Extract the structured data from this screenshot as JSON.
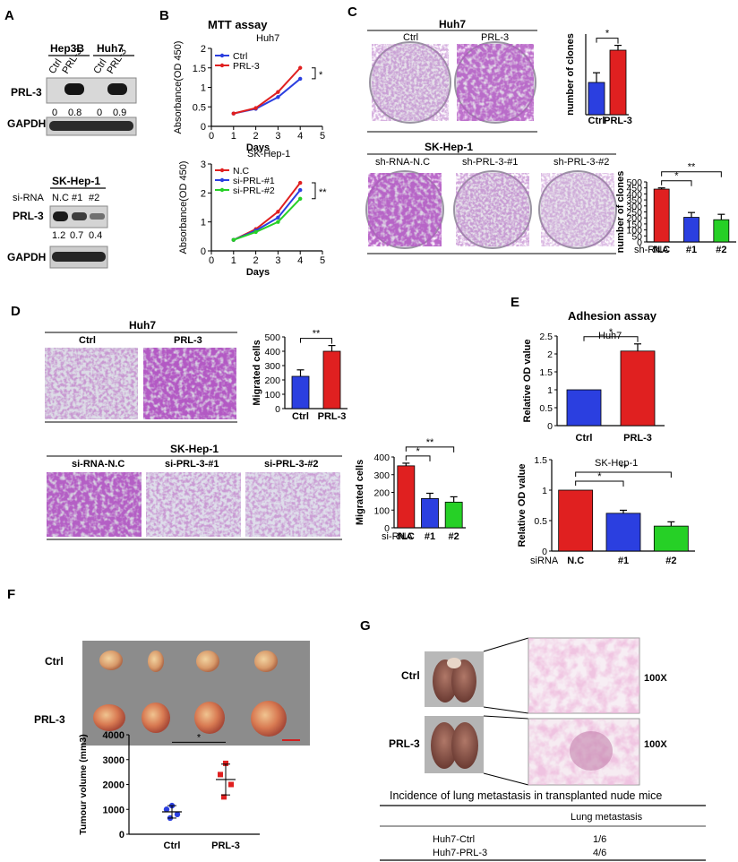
{
  "panels": {
    "A": "A",
    "B": "B",
    "C": "C",
    "D": "D",
    "E": "E",
    "F": "F",
    "G": "G"
  },
  "panelA": {
    "cell1": "Hep3B",
    "cell2": "Huh7",
    "lanes": [
      "Ctrl",
      "PRL-3",
      "Ctrl",
      "PRL-3"
    ],
    "row1": "PRL-3",
    "row2": "GAPDH",
    "quant": [
      "0",
      "0.8",
      "0",
      "0.9"
    ],
    "sk_title": "SK-Hep-1",
    "si_label": "si-RNA",
    "sk_lanes": [
      "N.C",
      "#1",
      "#2"
    ],
    "sk_row1": "PRL-3",
    "sk_row2": "GAPDH",
    "sk_quant": [
      "1.2",
      "0.7",
      "0.4"
    ]
  },
  "panelB": {
    "title": "MTT assay"
  },
  "panelC": {
    "huh7_title": "Huh7",
    "huh7_lanes": [
      "Ctrl",
      "PRL-3"
    ],
    "sk_title": "SK-Hep-1",
    "sk_lanes": [
      "sh-RNA-N.C",
      "sh-PRL-3-#1",
      "sh-PRL-3-#2"
    ]
  },
  "panelD": {
    "huh7_title": "Huh7",
    "huh7_lanes": [
      "Ctrl",
      "PRL-3"
    ],
    "sk_title": "SK-Hep-1",
    "sk_lanes": [
      "si-RNA-N.C",
      "si-PRL-3-#1",
      "si-PRL-3-#2"
    ]
  },
  "panelE": {
    "title": "Adhesion assay"
  },
  "panelF": {
    "rows": [
      "Ctrl",
      "PRL-3"
    ]
  },
  "panelG": {
    "rows": [
      "Ctrl",
      "PRL-3"
    ],
    "mag": [
      "100X",
      "100X"
    ],
    "table_title": "Incidence of lung metastasis in transplanted nude mice",
    "table_header": "Lung metastasis",
    "table_rows": [
      {
        "group": "Huh7-Ctrl",
        "value": "1/6"
      },
      {
        "group": "Huh7-PRL-3",
        "value": "4/6"
      }
    ]
  },
  "colors": {
    "blue": "#2b3fe0",
    "red": "#e02020",
    "green": "#26d026",
    "purple": "#7a2f8c",
    "stain": "#b04aa8"
  },
  "chart_data": [
    {
      "id": "B1",
      "type": "line",
      "subtitle": "Huh7",
      "xlabel": "Days",
      "ylabel": "Absorbance(OD 450)",
      "xlim": [
        0,
        5
      ],
      "ylim": [
        0,
        2
      ],
      "xticks": [
        0,
        1,
        2,
        3,
        4,
        5
      ],
      "yticks": [
        0,
        0.5,
        1,
        1.5,
        2
      ],
      "annotation": "*",
      "series": [
        {
          "name": "Ctrl",
          "color": "#2b3fe0",
          "x": [
            1,
            2,
            3,
            4
          ],
          "y": [
            0.33,
            0.45,
            0.75,
            1.22
          ]
        },
        {
          "name": "PRL-3",
          "color": "#e02020",
          "x": [
            1,
            2,
            3,
            4
          ],
          "y": [
            0.33,
            0.47,
            0.88,
            1.5
          ]
        }
      ]
    },
    {
      "id": "B2",
      "type": "line",
      "subtitle": "SK-Hep-1",
      "xlabel": "Days",
      "ylabel": "Absorbance(OD 450)",
      "xlim": [
        0,
        5
      ],
      "ylim": [
        0,
        3
      ],
      "xticks": [
        0,
        1,
        2,
        3,
        4,
        5
      ],
      "yticks": [
        0,
        1,
        2,
        3
      ],
      "annotation": "**",
      "series": [
        {
          "name": "N.C",
          "color": "#e02020",
          "x": [
            1,
            2,
            3,
            4
          ],
          "y": [
            0.38,
            0.75,
            1.35,
            2.35
          ]
        },
        {
          "name": "si-PRL-#1",
          "color": "#2b3fe0",
          "x": [
            1,
            2,
            3,
            4
          ],
          "y": [
            0.38,
            0.7,
            1.15,
            2.1
          ]
        },
        {
          "name": "si-PRL-#2",
          "color": "#26d026",
          "x": [
            1,
            2,
            3,
            4
          ],
          "y": [
            0.38,
            0.65,
            1.0,
            1.8
          ]
        }
      ]
    },
    {
      "id": "C1",
      "type": "bar",
      "ylabel": "number of clones",
      "ylim": [
        0,
        500
      ],
      "yticks": [],
      "categories": [
        "Ctrl",
        "PRL-3"
      ],
      "values": [
        200,
        400
      ],
      "errors": [
        60,
        30
      ],
      "colors": [
        "#2b3fe0",
        "#e02020"
      ],
      "sig": [
        {
          "from": 0,
          "to": 1,
          "label": "*"
        }
      ]
    },
    {
      "id": "C2",
      "type": "bar",
      "ylabel": "number of clones",
      "ylim": [
        0,
        500
      ],
      "yticks": [
        0,
        50,
        100,
        150,
        200,
        250,
        300,
        350,
        400,
        450,
        500
      ],
      "categories": [
        "N.C",
        "#1",
        "#2"
      ],
      "cat_label": "sh-RNA",
      "values": [
        440,
        205,
        185
      ],
      "errors": [
        10,
        40,
        45
      ],
      "colors": [
        "#e02020",
        "#2b3fe0",
        "#26d026"
      ],
      "sig": [
        {
          "from": 0,
          "to": 1,
          "label": "*"
        },
        {
          "from": 0,
          "to": 2,
          "label": "**"
        }
      ]
    },
    {
      "id": "D1",
      "type": "bar",
      "ylabel": "Migrated cells",
      "ylim": [
        0,
        500
      ],
      "yticks": [
        0,
        100,
        200,
        300,
        400,
        500
      ],
      "categories": [
        "Ctrl",
        "PRL-3"
      ],
      "values": [
        225,
        400
      ],
      "errors": [
        45,
        40
      ],
      "colors": [
        "#2b3fe0",
        "#e02020"
      ],
      "sig": [
        {
          "from": 0,
          "to": 1,
          "label": "**"
        }
      ]
    },
    {
      "id": "D2",
      "type": "bar",
      "ylabel": "Migrated cells",
      "ylim": [
        0,
        400
      ],
      "yticks": [
        0,
        100,
        200,
        300,
        400
      ],
      "categories": [
        "N.C",
        "#1",
        "#2"
      ],
      "cat_label": "si-RNA",
      "values": [
        350,
        165,
        145
      ],
      "errors": [
        15,
        30,
        30
      ],
      "colors": [
        "#e02020",
        "#2b3fe0",
        "#26d026"
      ],
      "sig": [
        {
          "from": 0,
          "to": 1,
          "label": "*"
        },
        {
          "from": 0,
          "to": 2,
          "label": "**"
        }
      ]
    },
    {
      "id": "E1",
      "type": "bar",
      "subtitle": "Huh7",
      "ylabel": "Relative OD value",
      "ylim": [
        0,
        2.5
      ],
      "yticks": [
        0,
        0.5,
        1,
        1.5,
        2,
        2.5
      ],
      "categories": [
        "Ctrl",
        "PRL-3"
      ],
      "values": [
        1.0,
        2.08
      ],
      "errors": [
        0,
        0.2
      ],
      "colors": [
        "#2b3fe0",
        "#e02020"
      ],
      "sig": [
        {
          "from": 0,
          "to": 1,
          "label": "*"
        }
      ]
    },
    {
      "id": "E2",
      "type": "bar",
      "subtitle": "SK-Hep-1",
      "ylabel": "Relative OD value",
      "ylim": [
        0,
        1.5
      ],
      "yticks": [
        0,
        0.5,
        1,
        1.5
      ],
      "categories": [
        "N.C",
        "#1",
        "#2"
      ],
      "cat_label": "siRNA",
      "values": [
        1.0,
        0.62,
        0.41
      ],
      "errors": [
        0,
        0.05,
        0.07
      ],
      "colors": [
        "#e02020",
        "#2b3fe0",
        "#26d026"
      ],
      "sig": [
        {
          "from": 0,
          "to": 1,
          "label": "*"
        },
        {
          "from": 0,
          "to": 2,
          "label": "**"
        }
      ]
    },
    {
      "id": "F1",
      "type": "scatter",
      "ylabel": "Tumour volume (mm3)",
      "ylim": [
        0,
        4000
      ],
      "yticks": [
        0,
        1000,
        2000,
        3000,
        4000
      ],
      "categories": [
        "Ctrl",
        "PRL-3"
      ],
      "series": [
        {
          "name": "Ctrl",
          "color": "#2b3fe0",
          "marker": "circle",
          "values": [
            1150,
            1000,
            800,
            650
          ],
          "mean": 900,
          "sd": 250
        },
        {
          "name": "PRL-3",
          "color": "#e02020",
          "marker": "square",
          "values": [
            2850,
            2400,
            2000,
            1500
          ],
          "mean": 2200,
          "sd": 620
        }
      ],
      "sig": [
        {
          "from": 0,
          "to": 1,
          "label": "*"
        }
      ]
    }
  ]
}
